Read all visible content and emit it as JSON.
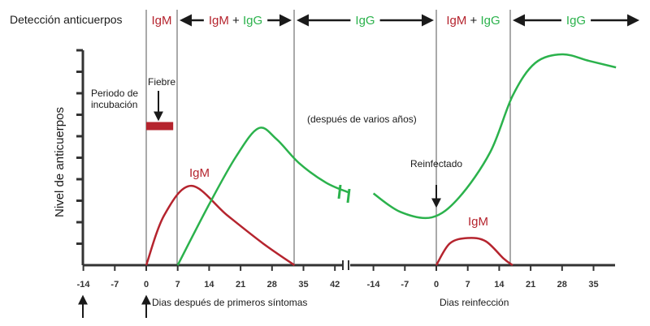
{
  "colors": {
    "igm": "#b5242e",
    "igg": "#2bb24c",
    "axis": "#333333",
    "arrow": "#1a1a1a"
  },
  "header": {
    "title": "Detección anticuerpos",
    "segments": [
      {
        "parts": [
          {
            "text": "IgM",
            "series": "igm"
          }
        ],
        "arrows": false
      },
      {
        "parts": [
          {
            "text": "IgM",
            "series": "igm"
          },
          {
            "text": " + ",
            "series": "plain"
          },
          {
            "text": "IgG",
            "series": "igg"
          }
        ],
        "arrows": true
      },
      {
        "parts": [
          {
            "text": "IgG",
            "series": "igg"
          }
        ],
        "arrows": true
      },
      {
        "parts": [
          {
            "text": "IgM",
            "series": "igm"
          },
          {
            "text": " + ",
            "series": "plain"
          },
          {
            "text": "IgG",
            "series": "igg"
          }
        ],
        "arrows": false
      },
      {
        "parts": [
          {
            "text": "IgG",
            "series": "igg"
          }
        ],
        "arrows": true
      }
    ]
  },
  "chart_data": {
    "type": "line",
    "ylabel": "Nivel de anticuerpos",
    "y_scale": "0-10 (sin valores impresos)",
    "ylim": [
      0,
      10
    ],
    "x_axis_segments": [
      {
        "name": "Dias después de primeros síntomas",
        "ticks": [
          -14,
          -7,
          0,
          7,
          14,
          21,
          28,
          35,
          42
        ]
      },
      {
        "name": "Dias reinfección",
        "ticks": [
          -14,
          -7,
          0,
          7,
          14,
          21,
          28,
          35
        ]
      }
    ],
    "tick_labels": [
      "-14",
      "-7",
      "0",
      "7",
      "14",
      "21",
      "28",
      "35",
      "42",
      "-14",
      "-7",
      "0",
      "7",
      "14",
      "21",
      "28",
      "35"
    ],
    "xlabels": {
      "first": "Dias después de primeros síntomas",
      "second": "Dias reinfección"
    },
    "annotations": {
      "incubation": "Periodo de\nincubación",
      "fever": "Fiebre",
      "years": "(después de varios años)",
      "reinfected": "Reinfectado"
    },
    "series": [
      {
        "name": "IgM",
        "color": "#b5242e",
        "segment": 1,
        "points": [
          [
            0,
            0
          ],
          [
            4,
            2.3
          ],
          [
            10,
            3.65
          ],
          [
            18,
            2.3
          ],
          [
            26,
            1.0
          ],
          [
            33,
            0
          ]
        ]
      },
      {
        "name": "IgG",
        "color": "#2bb24c",
        "segment": 1,
        "points": [
          [
            7,
            0
          ],
          [
            14,
            2.8
          ],
          [
            20,
            5.0
          ],
          [
            25,
            6.3
          ],
          [
            29,
            5.8
          ],
          [
            34,
            4.7
          ],
          [
            40,
            3.8
          ],
          [
            45,
            3.35
          ]
        ]
      },
      {
        "name": "IgG",
        "color": "#2bb24c",
        "segment": 2,
        "points": [
          [
            -14,
            3.3
          ],
          [
            -8,
            2.45
          ],
          [
            -1,
            2.2
          ],
          [
            5,
            3.1
          ],
          [
            12,
            5.2
          ],
          [
            17,
            7.8
          ],
          [
            22,
            9.3
          ],
          [
            28,
            9.7
          ],
          [
            34,
            9.4
          ],
          [
            40,
            9.1
          ]
        ]
      },
      {
        "name": "IgM",
        "color": "#b5242e",
        "segment": 2,
        "points": [
          [
            0,
            0
          ],
          [
            3,
            1.0
          ],
          [
            7,
            1.25
          ],
          [
            11,
            1.1
          ],
          [
            15,
            0.3
          ],
          [
            17,
            0
          ]
        ]
      }
    ],
    "fever_bar": {
      "segment": 1,
      "from": 0,
      "to": 6,
      "level": 6.4
    },
    "grid": false
  }
}
